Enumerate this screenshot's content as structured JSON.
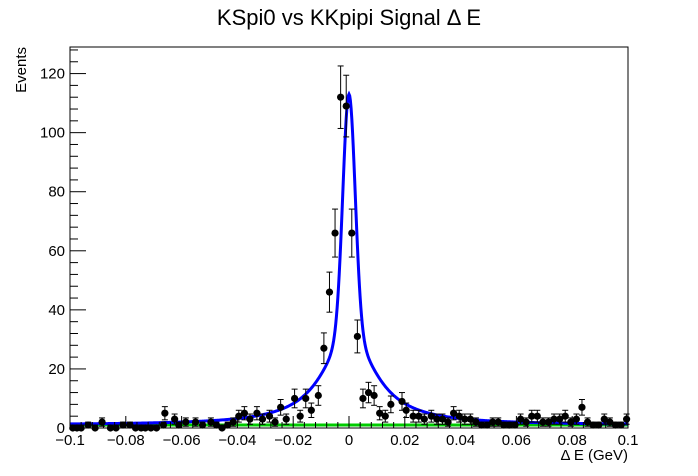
{
  "chart_data": {
    "type": "scatter",
    "title": "KSpi0 vs KKpipi Signal Δ E",
    "xlabel": "Δ E (GeV)",
    "ylabel": "Events",
    "xlim": [
      -0.1,
      0.1
    ],
    "ylim": [
      0,
      129
    ],
    "x_ticks": [
      "−0.1",
      "−0.08",
      "−0.06",
      "−0.04",
      "−0.02",
      "0",
      "0.02",
      "0.04",
      "0.06",
      "0.08",
      "0.1"
    ],
    "y_ticks": [
      "0",
      "20",
      "40",
      "60",
      "80",
      "100",
      "120"
    ],
    "grid": false,
    "legend": "none",
    "series": [
      {
        "kind": "data_points_with_errors",
        "color": "#000000",
        "x": [
          -0.099,
          -0.097,
          -0.095,
          -0.093,
          -0.091,
          -0.089,
          -0.087,
          -0.085,
          -0.083,
          -0.081,
          -0.079,
          -0.077,
          -0.075,
          -0.073,
          -0.071,
          -0.069,
          -0.067,
          -0.065,
          -0.063,
          -0.061,
          -0.059,
          -0.057,
          -0.055,
          -0.053,
          -0.051,
          -0.049,
          -0.047,
          -0.045,
          -0.043,
          -0.041,
          -0.039,
          -0.037,
          -0.035,
          -0.033,
          -0.031,
          -0.029,
          -0.027,
          -0.025,
          -0.023,
          -0.021,
          -0.019,
          -0.017,
          -0.015,
          -0.013,
          -0.011,
          -0.009,
          -0.007,
          -0.005,
          -0.003,
          -0.001,
          0.001,
          0.003,
          0.005,
          0.007,
          0.009,
          0.011,
          0.013,
          0.015,
          0.017,
          0.019,
          0.021,
          0.023,
          0.025,
          0.027,
          0.029,
          0.031,
          0.033,
          0.035,
          0.037,
          0.039,
          0.041,
          0.043,
          0.045,
          0.047,
          0.049,
          0.051,
          0.053,
          0.055,
          0.057,
          0.059,
          0.061,
          0.063,
          0.065,
          0.067,
          0.069,
          0.071,
          0.073,
          0.075,
          0.077,
          0.079,
          0.081,
          0.083,
          0.085,
          0.087,
          0.089,
          0.091,
          0.093,
          0.095,
          0.097,
          0.099
        ],
        "y": [
          0,
          0,
          0,
          1,
          0,
          2,
          0,
          0,
          1,
          1,
          0,
          0,
          0,
          1,
          0,
          1,
          5,
          3,
          1,
          2,
          2,
          1,
          2,
          1,
          0,
          1,
          0,
          2,
          4,
          2,
          5,
          3,
          5,
          2,
          4,
          2,
          7,
          3,
          10,
          4,
          10,
          6,
          11,
          12,
          27,
          46,
          66,
          112,
          109,
          66,
          31,
          10,
          12,
          9,
          10,
          5,
          5,
          4,
          8,
          9,
          6,
          6,
          4,
          5,
          3,
          3,
          4,
          5,
          3,
          2,
          3,
          5,
          4,
          3,
          2,
          1,
          1,
          2,
          2,
          1,
          1,
          1,
          3,
          2,
          4,
          4,
          2,
          2,
          3,
          3,
          4,
          2,
          3,
          7,
          2,
          1,
          1,
          3,
          3,
          1
        ],
        "point_x": [
          -0.099,
          -0.0975,
          -0.096,
          -0.0935,
          -0.091,
          -0.0885,
          -0.0855,
          -0.0835,
          -0.081,
          -0.0785,
          -0.0765,
          -0.0745,
          -0.073,
          -0.071,
          -0.069,
          -0.0665,
          -0.066,
          -0.0625,
          -0.061,
          -0.0585,
          -0.055,
          -0.0525,
          -0.0495,
          -0.0475,
          -0.0455,
          -0.0435,
          -0.0415,
          -0.0395,
          -0.0375,
          -0.0355,
          -0.033,
          -0.031,
          -0.0285,
          -0.0265,
          -0.0245,
          -0.0225,
          -0.0195,
          -0.0175,
          -0.0155,
          -0.0135,
          -0.011,
          -0.009,
          -0.007,
          -0.005,
          -0.003,
          -0.001,
          0.001,
          0.003,
          0.005,
          0.007,
          0.009,
          0.011,
          0.013,
          0.015,
          0.019,
          0.0205,
          0.023,
          0.025,
          0.027,
          0.0295,
          0.0315,
          0.0335,
          0.0355,
          0.0375,
          0.0395,
          0.0415,
          0.0435,
          0.0455,
          0.0475,
          0.0495,
          0.0515,
          0.0535,
          0.0555,
          0.0575,
          0.0595,
          0.0615,
          0.0635,
          0.0655,
          0.0675,
          0.0695,
          0.0715,
          0.0735,
          0.0755,
          0.0775,
          0.0795,
          0.0815,
          0.0835,
          0.0855,
          0.0875,
          0.0895,
          0.0915,
          0.0935,
          0.0955,
          0.0975,
          0.0995
        ],
        "point_y": [
          0,
          0,
          0,
          1,
          0,
          2,
          0,
          0,
          1,
          1,
          0,
          0,
          0,
          0,
          0,
          1,
          5,
          3,
          1,
          2,
          2,
          1,
          2,
          1,
          0,
          1,
          2,
          4,
          5,
          3,
          5,
          3,
          4,
          2,
          7,
          3,
          10,
          4,
          10,
          6,
          11,
          27,
          46,
          66,
          112,
          109,
          66,
          31,
          10,
          12,
          11,
          5,
          4,
          8,
          9,
          6,
          4,
          4,
          3,
          4,
          3,
          3,
          2,
          5,
          4,
          3,
          3,
          2,
          1,
          1,
          2,
          2,
          1,
          1,
          1,
          3,
          2,
          4,
          4,
          2,
          2,
          3,
          3,
          4,
          2,
          3,
          7,
          2,
          1,
          1,
          3,
          2,
          1,
          1,
          3
        ]
      },
      {
        "kind": "total_fit_curve",
        "color": "#0000ff",
        "peak_mean": 0.0,
        "peak_height": 113,
        "core_sigma": 0.0022,
        "tail_width": 0.011,
        "background_level": 1
      },
      {
        "kind": "background_fit_line",
        "color": "#00cc00",
        "values": [
          1,
          1
        ]
      }
    ]
  }
}
